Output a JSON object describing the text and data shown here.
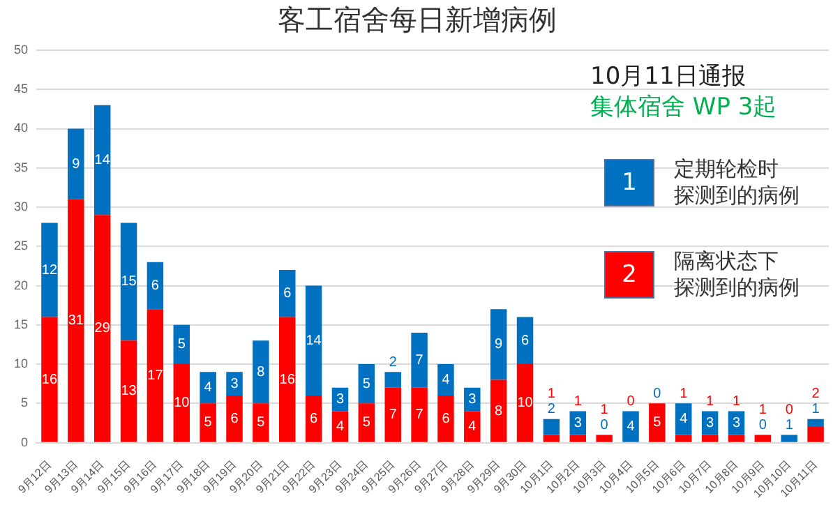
{
  "chart_data": {
    "type": "bar",
    "title": "客工宿舍每日新增病例",
    "stacked": true,
    "categories": [
      "9月12日",
      "9月13日",
      "9月14日",
      "9月15日",
      "9月16日",
      "9月17日",
      "9月18日",
      "9月19日",
      "9月20日",
      "9月21日",
      "9月22日",
      "9月23日",
      "9月24日",
      "9月25日",
      "9月26日",
      "9月27日",
      "9月28日",
      "9月29日",
      "9月30日",
      "10月1日",
      "10月2日",
      "10月3日",
      "10月4日",
      "10月5日",
      "10月6日",
      "10月7日",
      "10月8日",
      "10月9日",
      "10月10日",
      "10月11日"
    ],
    "series": [
      {
        "name": "隔离状态下探测到的病例",
        "color": "#ff0000",
        "values": [
          16,
          31,
          29,
          13,
          17,
          10,
          5,
          6,
          5,
          16,
          6,
          4,
          5,
          7,
          7,
          6,
          4,
          8,
          10,
          1,
          1,
          1,
          0,
          5,
          1,
          1,
          1,
          1,
          0,
          2
        ]
      },
      {
        "name": "定期轮检时探测到的病例",
        "color": "#0070c0",
        "values": [
          12,
          9,
          14,
          15,
          6,
          5,
          4,
          3,
          8,
          6,
          14,
          3,
          5,
          2,
          7,
          4,
          3,
          9,
          6,
          2,
          3,
          0,
          4,
          0,
          4,
          3,
          3,
          0,
          1,
          1
        ]
      }
    ],
    "ylim": [
      0,
      50
    ],
    "yticks": [
      0,
      5,
      10,
      15,
      20,
      25,
      30,
      35,
      40,
      45,
      50
    ],
    "grid": "y",
    "legend": "top right",
    "data_labels": true,
    "annotations": [
      "10月11日通报",
      "集体宿舍 WP 3起",
      "1",
      "2"
    ]
  }
}
